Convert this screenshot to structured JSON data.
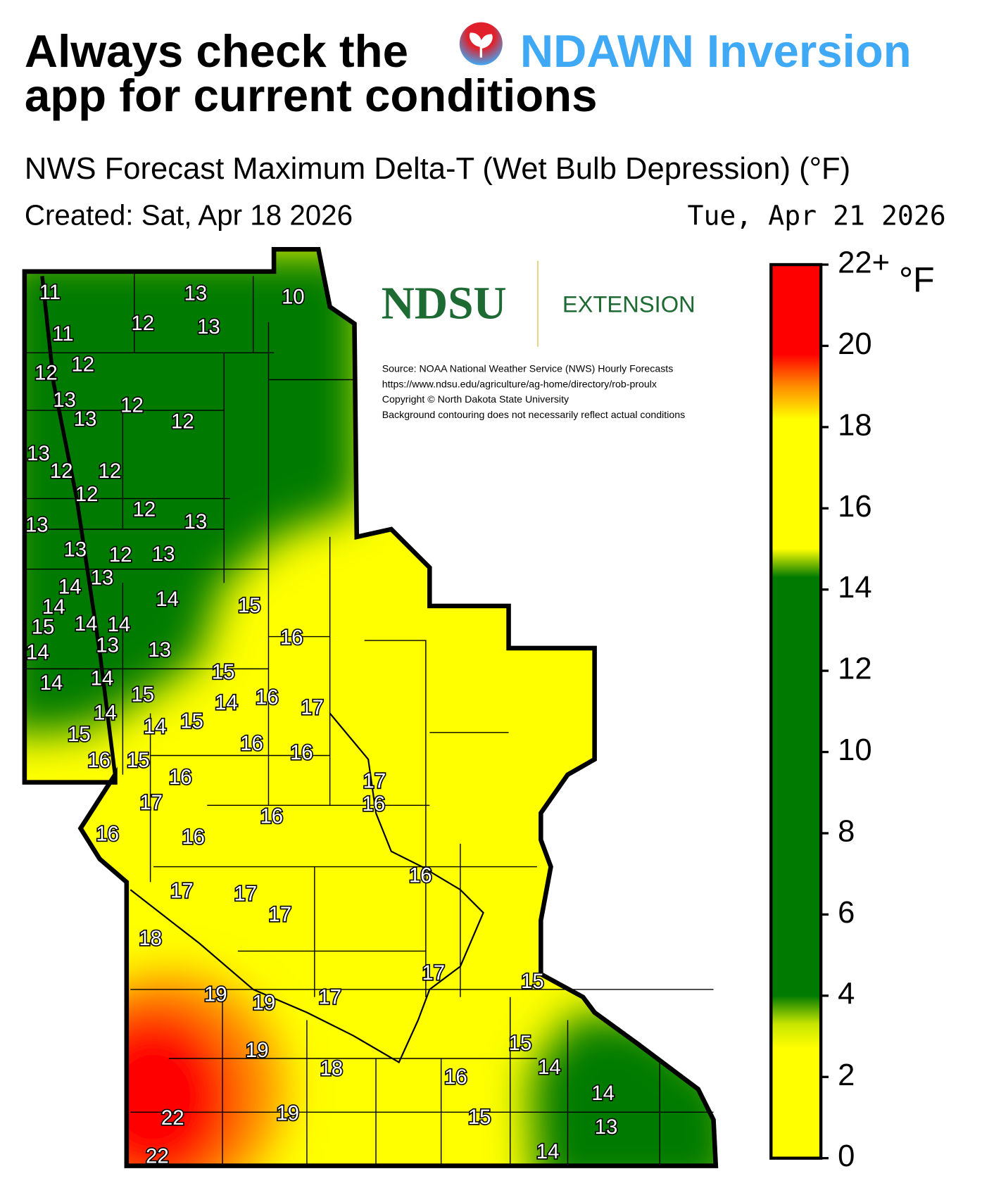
{
  "header": {
    "title_line1": "Always check the",
    "app_name": "NDAWN Inversion",
    "title_line2": "app for current conditions"
  },
  "subtitle": "NWS Forecast Maximum Delta-T (Wet Bulb Depression) (°F)",
  "created": "Created: Sat, Apr 18 2026",
  "forecast_date": "Tue, Apr 21 2026",
  "logo": {
    "name": "NDSU",
    "unit": "EXTENSION"
  },
  "notes": [
    "Source: NOAA National Weather Service (NWS) Hourly Forecasts",
    "https://www.ndsu.edu/agriculture/ag-home/directory/rob-proulx",
    "Copyright © North Dakota State University",
    "Background contouring does not necessarily reflect actual conditions"
  ],
  "colorbar": {
    "unit": "°F",
    "range": [
      0,
      22
    ],
    "ticks": [
      0,
      2,
      4,
      6,
      8,
      10,
      12,
      14,
      16,
      18,
      20,
      {
        "value": 22,
        "label": "22+"
      }
    ]
  },
  "stations": {
    "values": [
      11,
      13,
      10,
      12,
      13,
      11,
      12,
      12,
      13,
      12,
      13,
      12,
      13,
      12,
      12,
      12,
      12,
      13,
      13,
      13,
      12,
      13,
      14,
      13,
      14,
      14,
      15,
      15,
      14,
      14,
      13,
      13,
      14,
      16,
      15,
      14,
      14,
      15,
      14,
      16,
      17,
      14,
      14,
      15,
      15,
      16,
      16,
      16,
      15,
      16,
      17,
      17,
      16,
      16,
      16,
      16,
      16,
      17,
      17,
      17,
      18,
      17,
      15,
      19,
      19,
      17,
      15,
      19,
      18,
      14,
      16,
      14,
      22,
      19,
      15,
      13,
      14,
      22
    ]
  }
}
